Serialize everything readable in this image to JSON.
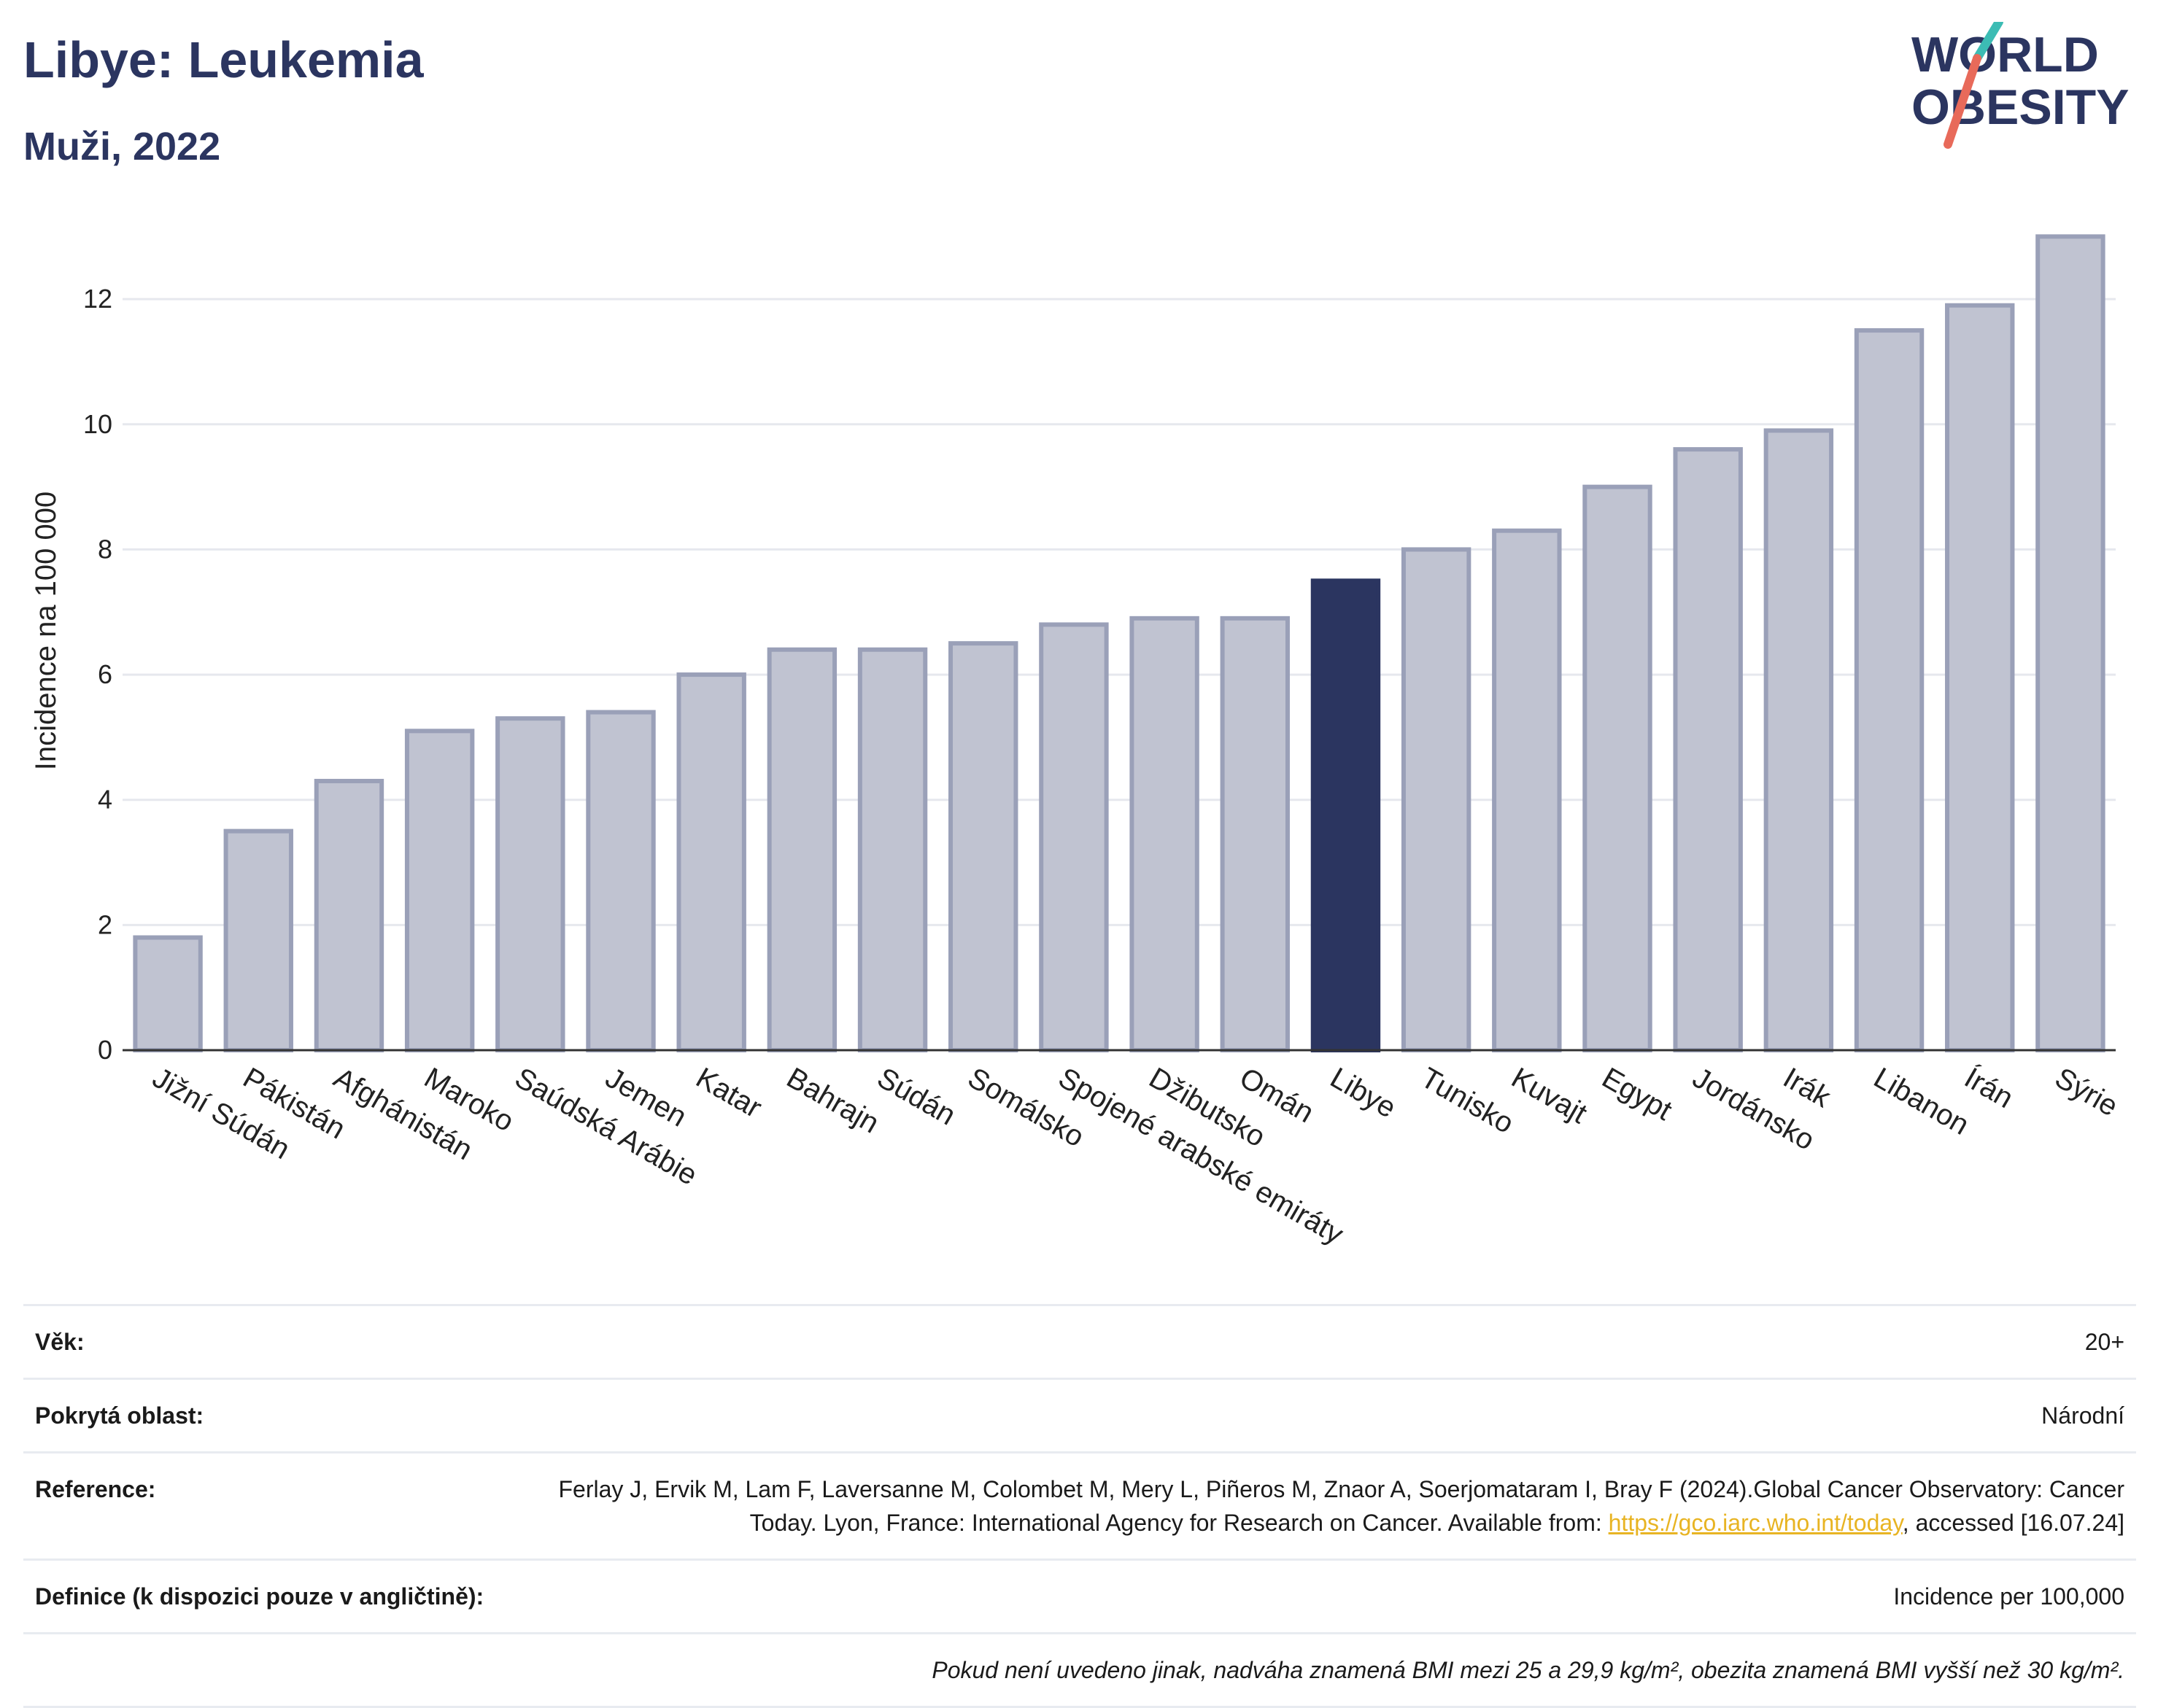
{
  "header": {
    "title": "Libye: Leukemia",
    "subtitle": "Muži, 2022"
  },
  "logo": {
    "line1": "WORLD",
    "line2": "OBESITY",
    "colors": {
      "text": "#2b3560",
      "slash_teal": "#3cbcb4",
      "slash_coral": "#e86a5a"
    }
  },
  "chart_data": {
    "type": "bar",
    "ylabel": "Incidence na 100 000",
    "xlabel": "",
    "ylim": [
      0,
      13.4
    ],
    "yticks": [
      0,
      2,
      4,
      6,
      8,
      10,
      12
    ],
    "grid": true,
    "highlight": "Libye",
    "colors": {
      "bar": "#c0c3d1",
      "bar_border": "#9aa0b8",
      "highlight": "#2b3560",
      "grid": "#e6e8ee",
      "axis": "#333333"
    },
    "categories": [
      "Jižní Súdán",
      "Pákistán",
      "Afghánistán",
      "Maroko",
      "Saúdská Arábie",
      "Jemen",
      "Katar",
      "Bahrajn",
      "Súdán",
      "Somálsko",
      "Spojené arabské emiráty",
      "Džibutsko",
      "Omán",
      "Libye",
      "Tunisko",
      "Kuvajt",
      "Egypt",
      "Jordánsko",
      "Irák",
      "Libanon",
      "Írán",
      "Sýrie"
    ],
    "values": [
      1.8,
      3.5,
      4.3,
      5.1,
      5.3,
      5.4,
      6.0,
      6.4,
      6.4,
      6.5,
      6.8,
      6.9,
      6.9,
      7.5,
      8.0,
      8.3,
      9.0,
      9.6,
      9.9,
      11.5,
      11.9,
      13.0
    ]
  },
  "info": {
    "age_label": "Věk:",
    "age_value": "20+",
    "coverage_label": "Pokrytá oblast:",
    "coverage_value": "Národní",
    "reference_label": "Reference:",
    "reference_text_1": "Ferlay J, Ervik M, Lam F, Laversanne M, Colombet M, Mery L, Piñeros M, Znaor A, Soerjomataram I, Bray F (2024).Global Cancer Observatory: Cancer Today. Lyon, France: International Agency for Research on Cancer. Available from: ",
    "reference_link": "https://gco.iarc.who.int/today",
    "reference_text_2": ", accessed [16.07.24]",
    "definition_label": "Definice (k dispozici pouze v angličtině):",
    "definition_value": "Incidence per 100,000",
    "note": "Pokud není uvedeno jinak, nadváha znamená BMI mezi 25 a 29,9 kg/m², obezita znamená BMI vyšší než 30 kg/m²."
  }
}
